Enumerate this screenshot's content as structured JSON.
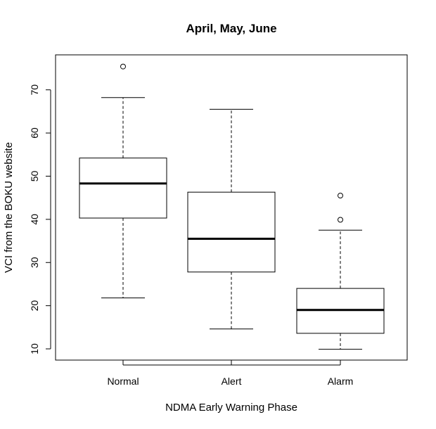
{
  "chart_data": {
    "type": "boxplot",
    "title": "April, May, June",
    "xlabel": "NDMA Early Warning Phase",
    "ylabel": "VCI from the BOKU website",
    "categories": [
      "Normal",
      "Alert",
      "Alarm"
    ],
    "yticks": [
      10,
      20,
      30,
      40,
      50,
      60,
      70
    ],
    "ylim": [
      7.4,
      78.1
    ],
    "boxes": [
      {
        "name": "Normal",
        "whisker_low": 21.8,
        "q1": 40.3,
        "median": 48.3,
        "q3": 54.2,
        "whisker_high": 68.2,
        "outliers": [
          75.4
        ]
      },
      {
        "name": "Alert",
        "whisker_low": 14.6,
        "q1": 27.8,
        "median": 35.5,
        "q3": 46.3,
        "whisker_high": 65.5,
        "outliers": []
      },
      {
        "name": "Alarm",
        "whisker_low": 9.9,
        "q1": 13.6,
        "median": 19.0,
        "q3": 24.0,
        "whisker_high": 37.5,
        "outliers": [
          39.9,
          45.5
        ]
      }
    ],
    "grid": false,
    "legend": "none"
  }
}
